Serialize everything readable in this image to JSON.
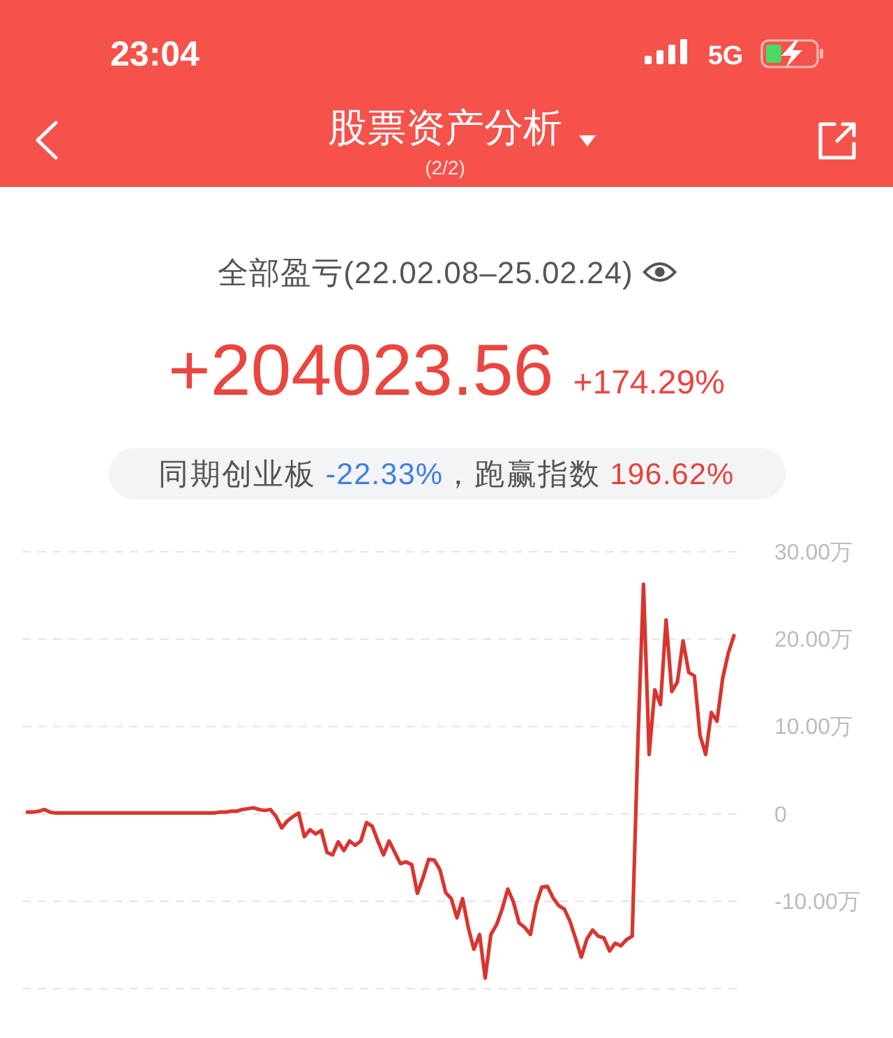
{
  "chart_data": {
    "type": "line",
    "title": "股票资产分析",
    "subtitle": "全部盈亏(22.02.08–25.02.24)",
    "annotations": [
      "23:04",
      "5G",
      "(2/2)",
      "+204023.56",
      "+174.29%",
      "同期创业板 -22.33%，跑赢指数 196.62%"
    ],
    "categories": [
      null,
      null,
      null,
      null,
      null,
      null,
      null,
      null,
      null,
      null,
      null,
      null,
      null,
      null,
      null,
      null,
      null,
      null,
      null,
      null,
      null,
      null,
      null,
      null,
      null,
      null,
      null,
      null,
      null,
      null,
      null,
      null,
      null,
      null,
      null,
      null,
      null,
      null,
      null,
      null,
      null,
      null,
      null,
      null,
      null,
      null,
      null,
      null,
      null,
      null,
      null,
      null,
      null,
      null,
      null,
      null,
      null,
      null,
      null,
      null,
      null,
      null,
      null,
      null,
      null,
      null,
      null,
      null,
      null,
      null,
      null,
      null,
      null,
      null,
      null,
      null,
      null,
      null,
      null,
      null,
      null,
      null,
      null,
      null,
      null,
      null,
      null,
      null,
      null,
      null,
      null,
      null,
      null,
      null,
      null,
      null,
      null,
      null,
      null,
      null,
      null,
      null,
      null,
      null,
      null,
      null,
      null,
      null,
      null,
      null,
      null,
      null,
      null,
      null,
      null,
      null,
      null,
      null,
      null,
      null,
      null,
      null,
      null,
      null,
      null,
      null
    ],
    "series": [
      {
        "color": "#d9352f",
        "values": [
          0.2,
          0.2,
          0.3,
          0.5,
          0.2,
          0.1,
          0.1,
          0.1,
          0.1,
          0.1,
          0.1,
          0.1,
          0.1,
          0.1,
          0.1,
          0.1,
          0.1,
          0.1,
          0.1,
          0.1,
          0.1,
          0.1,
          0.1,
          0.1,
          0.1,
          0.1,
          0.1,
          0.1,
          0.1,
          0.1,
          0.1,
          0.1,
          0.1,
          0.1,
          0.2,
          0.2,
          0.3,
          0.3,
          0.5,
          0.6,
          0.7,
          0.5,
          0.4,
          0.5,
          -0.3,
          -1.6,
          -0.8,
          -0.3,
          0.1,
          -2.6,
          -1.8,
          -2.3,
          -1.9,
          -4.4,
          -4.7,
          -3.2,
          -4.2,
          -3.1,
          -3.6,
          -3.1,
          -1.0,
          -1.4,
          -3.1,
          -4.7,
          -3.1,
          -4.4,
          -5.7,
          -5.5,
          -5.8,
          -9.1,
          -7.3,
          -5.2,
          -5.3,
          -6.4,
          -9.0,
          -9.7,
          -11.9,
          -9.7,
          -13.0,
          -15.5,
          -13.8,
          -18.8,
          -13.8,
          -12.7,
          -10.9,
          -8.6,
          -10.1,
          -12.5,
          -13.0,
          -13.8,
          -10.4,
          -8.4,
          -8.3,
          -9.6,
          -10.5,
          -10.9,
          -12.3,
          -14.3,
          -16.4,
          -14.3,
          -13.3,
          -14.0,
          -14.2,
          -15.7,
          -14.8,
          -15.1,
          -14.4,
          -14.0,
          8.0,
          26.3,
          6.8,
          14.2,
          12.5,
          22.2,
          14.0,
          15.1,
          19.8,
          16.2,
          15.8,
          9.0,
          6.8,
          11.6,
          10.6,
          15.5,
          18.4,
          20.4
        ]
      }
    ],
    "ylim": [
      -20,
      30
    ],
    "yticks": [
      {
        "value": -20,
        "label": null
      },
      {
        "value": -10,
        "label": "-10.00万"
      },
      0,
      {
        "value": 10,
        "label": "10.00万"
      },
      {
        "value": 20,
        "label": "20.00万"
      },
      {
        "value": 30,
        "label": "30.00万"
      }
    ],
    "grid": "y",
    "tick_labels": "y"
  }
}
